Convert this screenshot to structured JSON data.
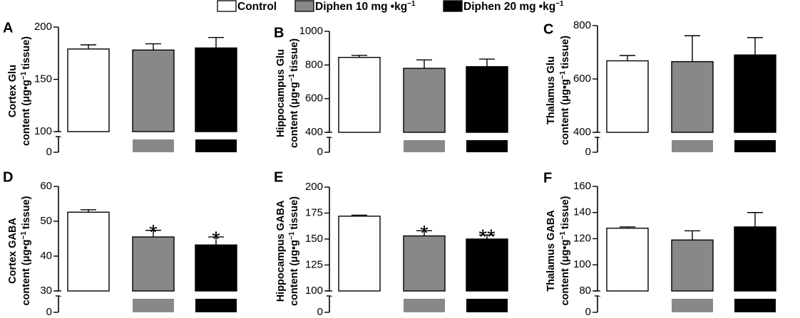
{
  "legend": {
    "items": [
      {
        "label": "Control",
        "unit": "",
        "fill": "#ffffff"
      },
      {
        "label": "Diphen 10 mg",
        "unit": "kg",
        "fill": "#888888"
      },
      {
        "label": "Diphen 20 mg",
        "unit": "kg",
        "fill": "#000000"
      }
    ],
    "unit_dot": "•",
    "unit_exp": "−1"
  },
  "colors": {
    "control": "#ffffff",
    "diphen10": "#888888",
    "diphen20": "#000000",
    "axis": "#000000"
  },
  "chart_data": [
    {
      "panel": "A",
      "type": "bar",
      "ylabel_line1": "Cortex Glu",
      "ylabel_line2_a": "content (μg•g",
      "ylabel_line2_exp": "−1",
      "ylabel_line2_b": "tissue)",
      "ylim": [
        100,
        200
      ],
      "yticks": [
        100,
        150,
        200
      ],
      "zero_tick": "0",
      "axis_break": true,
      "categories": [
        "Control",
        "Diphen 10 mg•kg−1",
        "Diphen 20 mg•kg−1"
      ],
      "values": [
        179,
        178,
        180
      ],
      "errors": [
        4,
        6,
        10
      ],
      "significance": [
        "",
        "",
        ""
      ]
    },
    {
      "panel": "B",
      "type": "bar",
      "ylabel_line1": "Hippocampus Glu",
      "ylabel_line2_a": "content (μg•g",
      "ylabel_line2_exp": "−1",
      "ylabel_line2_b": "tissue)",
      "ylim": [
        400,
        1000
      ],
      "yticks": [
        400,
        600,
        800,
        1000
      ],
      "zero_tick": "0",
      "axis_break": true,
      "categories": [
        "Control",
        "Diphen 10 mg•kg−1",
        "Diphen 20 mg•kg−1"
      ],
      "values": [
        845,
        780,
        790
      ],
      "errors": [
        12,
        50,
        45
      ],
      "significance": [
        "",
        "",
        ""
      ]
    },
    {
      "panel": "C",
      "type": "bar",
      "ylabel_line1": "Thalamus Glu",
      "ylabel_line2_a": "content (μg•g",
      "ylabel_line2_exp": "−1",
      "ylabel_line2_b": "tissue)",
      "ylim": [
        400,
        800
      ],
      "yticks": [
        400,
        600,
        800
      ],
      "zero_tick": "0",
      "axis_break": true,
      "categories": [
        "Control",
        "Diphen 10 mg•kg−1",
        "Diphen 20 mg•kg−1"
      ],
      "values": [
        668,
        665,
        690
      ],
      "errors": [
        20,
        97,
        65
      ],
      "significance": [
        "",
        "",
        ""
      ]
    },
    {
      "panel": "D",
      "type": "bar",
      "ylabel_line1": "Cortex GABA",
      "ylabel_line2_a": "content (μg•g",
      "ylabel_line2_exp": "−1",
      "ylabel_line2_b": "tissue)",
      "ylim": [
        30,
        60
      ],
      "yticks": [
        30,
        40,
        50,
        60
      ],
      "zero_tick": "0",
      "axis_break": true,
      "categories": [
        "Control",
        "Diphen 10 mg•kg−1",
        "Diphen 20 mg•kg−1"
      ],
      "values": [
        52.6,
        45.5,
        43.2
      ],
      "errors": [
        0.7,
        1.9,
        2.3
      ],
      "significance": [
        "",
        "*",
        "*"
      ]
    },
    {
      "panel": "E",
      "type": "bar",
      "ylabel_line1": "Hippocampus GABA",
      "ylabel_line2_a": "content (μg•g",
      "ylabel_line2_exp": "−1",
      "ylabel_line2_b": "tissue)",
      "ylim": [
        100,
        200
      ],
      "yticks": [
        100,
        125,
        150,
        175,
        200
      ],
      "zero_tick": "0",
      "axis_break": true,
      "categories": [
        "Control",
        "Diphen 10 mg•kg−1",
        "Diphen 20 mg•kg−1"
      ],
      "values": [
        172,
        153,
        150
      ],
      "errors": [
        1,
        5,
        4
      ],
      "significance": [
        "",
        "*",
        "**"
      ]
    },
    {
      "panel": "F",
      "type": "bar",
      "ylabel_line1": "Thalamus GABA",
      "ylabel_line2_a": "content (μg•g",
      "ylabel_line2_exp": "−1",
      "ylabel_line2_b": "tissue)",
      "ylim": [
        80,
        160
      ],
      "yticks": [
        80,
        100,
        120,
        140,
        160
      ],
      "zero_tick": "0",
      "axis_break": true,
      "categories": [
        "Control",
        "Diphen 10 mg•kg−1",
        "Diphen 20 mg•kg−1"
      ],
      "values": [
        128,
        119,
        129
      ],
      "errors": [
        1,
        7,
        11
      ],
      "significance": [
        "",
        "",
        ""
      ]
    }
  ]
}
